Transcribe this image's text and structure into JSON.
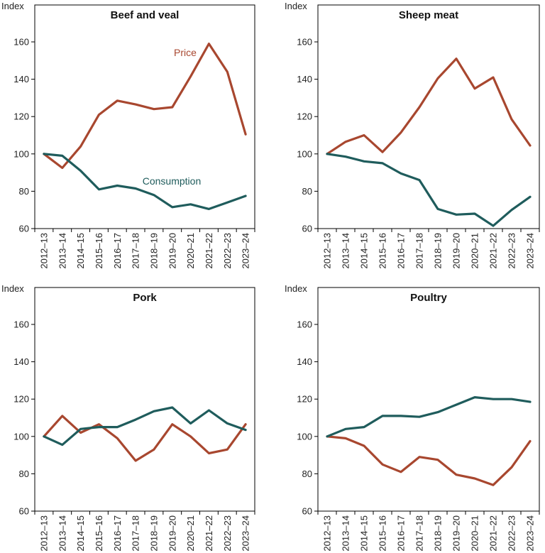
{
  "colors": {
    "price": "#A8472F",
    "consumption": "#1F5C5C",
    "axis": "#000000"
  },
  "chart_data": [
    {
      "type": "line",
      "title": "Beef and veal",
      "ylabel": "Index",
      "ylim": [
        60,
        160
      ],
      "yticks": [
        60,
        80,
        100,
        120,
        140,
        160
      ],
      "grid": false,
      "categories": [
        "2012–13",
        "2013–14",
        "2014–15",
        "2015–16",
        "2016–17",
        "2017–18",
        "2018–19",
        "2019–20",
        "2020–21",
        "2021–22",
        "2022–23",
        "2023–24"
      ],
      "series": [
        {
          "name": "Price",
          "color_key": "price",
          "values": [
            100,
            92.5,
            104,
            121,
            128.5,
            126.5,
            124,
            125,
            141.5,
            159,
            144,
            110.5
          ]
        },
        {
          "name": "Consumption",
          "color_key": "consumption",
          "values": [
            100,
            99,
            91,
            81,
            83,
            81.5,
            78,
            71.5,
            73,
            70.5,
            74,
            77.5
          ]
        }
      ],
      "annotations": [
        {
          "text": "Price",
          "color_key": "price"
        },
        {
          "text": "Consumption",
          "color_key": "consumption"
        }
      ]
    },
    {
      "type": "line",
      "title": "Sheep meat",
      "ylabel": "Index",
      "ylim": [
        60,
        160
      ],
      "yticks": [
        60,
        80,
        100,
        120,
        140,
        160
      ],
      "grid": false,
      "categories": [
        "2012–13",
        "2013–14",
        "2014–15",
        "2015–16",
        "2016–17",
        "2017–18",
        "2018–19",
        "2019–20",
        "2020–21",
        "2021–22",
        "2022–23",
        "2023–24"
      ],
      "series": [
        {
          "name": "Price",
          "color_key": "price",
          "values": [
            100,
            106.5,
            110,
            101,
            111.5,
            125,
            140.5,
            151,
            135,
            141,
            118.5,
            104.5
          ]
        },
        {
          "name": "Consumption",
          "color_key": "consumption",
          "values": [
            100,
            98.5,
            96,
            95,
            89.5,
            86,
            70.5,
            67.5,
            68,
            61.5,
            70,
            77
          ]
        }
      ],
      "annotations": []
    },
    {
      "type": "line",
      "title": "Pork",
      "ylabel": "Index",
      "ylim": [
        60,
        160
      ],
      "yticks": [
        60,
        80,
        100,
        120,
        140,
        160
      ],
      "grid": false,
      "categories": [
        "2012–13",
        "2013–14",
        "2014–15",
        "2015–16",
        "2016–17",
        "2017–18",
        "2018–19",
        "2019–20",
        "2020–21",
        "2021–22",
        "2022–23",
        "2023–24"
      ],
      "series": [
        {
          "name": "Price",
          "color_key": "price",
          "values": [
            100,
            111,
            102,
            106.5,
            99,
            87,
            93,
            106.5,
            100,
            91,
            93,
            106.5
          ]
        },
        {
          "name": "Consumption",
          "color_key": "consumption",
          "values": [
            100,
            95.5,
            104,
            105,
            105,
            109,
            113.5,
            115.5,
            107,
            114,
            107,
            103.5
          ]
        }
      ],
      "annotations": []
    },
    {
      "type": "line",
      "title": "Poultry",
      "ylabel": "Index",
      "ylim": [
        60,
        160
      ],
      "yticks": [
        60,
        80,
        100,
        120,
        140,
        160
      ],
      "grid": false,
      "categories": [
        "2012–13",
        "2013–14",
        "2014–15",
        "2015–16",
        "2016–17",
        "2017–18",
        "2018–19",
        "2019–20",
        "2020–21",
        "2021–22",
        "2022–23",
        "2023–24"
      ],
      "series": [
        {
          "name": "Price",
          "color_key": "price",
          "values": [
            100,
            99,
            95,
            85,
            81,
            89,
            87.5,
            79.5,
            77.5,
            74,
            83.5,
            97.5
          ]
        },
        {
          "name": "Consumption",
          "color_key": "consumption",
          "values": [
            100,
            104,
            105,
            111,
            111,
            110.5,
            113,
            117,
            121,
            120,
            120,
            118.5
          ]
        }
      ],
      "annotations": []
    }
  ]
}
